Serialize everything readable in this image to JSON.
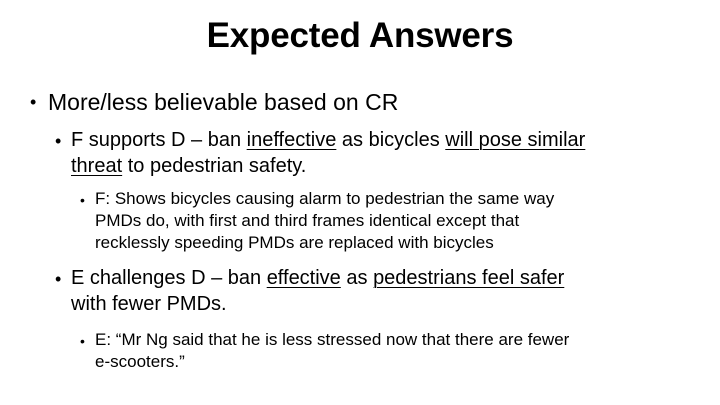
{
  "slide": {
    "title": "Expected Answers",
    "bullet_char": "•",
    "level1": {
      "text": "More/less believable based on CR"
    },
    "f_point": {
      "seg1": "F supports D – ban ",
      "seg2": "ineffective",
      "seg3": " as bicycles ",
      "seg4": "will pose similar",
      "seg5": "threat",
      "seg6": " to pedestrian safety."
    },
    "f_detail": {
      "line1": "F: Shows bicycles causing alarm to pedestrian the same way",
      "line2": "PMDs do, with first and third frames identical except that",
      "line3": "recklessly speeding PMDs are replaced with bicycles"
    },
    "e_point": {
      "seg1": "E challenges D – ban ",
      "seg2": "effective",
      "seg3": " as ",
      "seg4": "pedestrians feel safer",
      "seg5": "with fewer PMDs."
    },
    "e_detail": {
      "line1": "E: “Mr Ng said that he is less stressed now that there are fewer",
      "line2": "e-scooters.”"
    }
  }
}
